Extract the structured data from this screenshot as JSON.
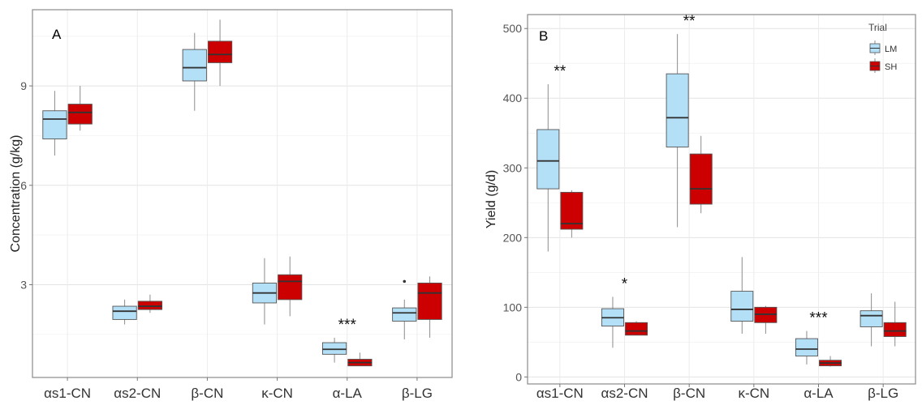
{
  "colors": {
    "LM": "#b3e0f7",
    "SH": "#cc0000"
  },
  "legend": {
    "title": "Trial",
    "entries": [
      "LM",
      "SH"
    ],
    "placement": "top-right of panel B"
  },
  "chart_data": [
    {
      "type": "box",
      "panel_label": "A",
      "ylabel": "Concentration (g/kg)",
      "xlabel": "",
      "ylim": [
        0.2,
        11.3
      ],
      "yticks": [
        3,
        6,
        9
      ],
      "grid": true,
      "categories": [
        "αs1-CN",
        "αs2-CN",
        "β-CN",
        "κ-CN",
        "α-LA",
        "β-LG"
      ],
      "series": [
        {
          "name": "LM",
          "boxes": [
            {
              "min": 6.9,
              "q1": 7.4,
              "median": 8.0,
              "q3": 8.25,
              "max": 8.85,
              "outliers": []
            },
            {
              "min": 1.8,
              "q1": 1.95,
              "median": 2.2,
              "q3": 2.35,
              "max": 2.55,
              "outliers": []
            },
            {
              "min": 8.25,
              "q1": 9.15,
              "median": 9.55,
              "q3": 10.1,
              "max": 10.6,
              "outliers": []
            },
            {
              "min": 1.8,
              "q1": 2.45,
              "median": 2.75,
              "q3": 3.05,
              "max": 3.8,
              "outliers": []
            },
            {
              "min": 0.65,
              "q1": 0.9,
              "median": 1.05,
              "q3": 1.25,
              "max": 1.4,
              "outliers": []
            },
            {
              "min": 1.35,
              "q1": 1.9,
              "median": 2.15,
              "q3": 2.3,
              "max": 2.55,
              "outliers": [
                3.1
              ]
            }
          ]
        },
        {
          "name": "SH",
          "boxes": [
            {
              "min": 7.65,
              "q1": 7.85,
              "median": 8.2,
              "q3": 8.45,
              "max": 9.0,
              "outliers": []
            },
            {
              "min": 2.15,
              "q1": 2.25,
              "median": 2.35,
              "q3": 2.5,
              "max": 2.7,
              "outliers": []
            },
            {
              "min": 9.0,
              "q1": 9.7,
              "median": 9.95,
              "q3": 10.35,
              "max": 11.0,
              "outliers": []
            },
            {
              "min": 2.05,
              "q1": 2.55,
              "median": 3.1,
              "q3": 3.3,
              "max": 3.85,
              "outliers": []
            },
            {
              "min": 0.55,
              "q1": 0.55,
              "median": 0.65,
              "q3": 0.75,
              "max": 0.95,
              "outliers": []
            },
            {
              "min": 1.4,
              "q1": 1.95,
              "median": 2.75,
              "q3": 3.05,
              "max": 3.25,
              "outliers": []
            }
          ]
        }
      ],
      "annotations": [
        {
          "category": "α-LA",
          "text": "***"
        }
      ]
    },
    {
      "type": "box",
      "panel_label": "B",
      "ylabel": "Yield (g/d)",
      "xlabel": "",
      "ylim": [
        -10,
        520
      ],
      "yticks": [
        0,
        100,
        200,
        300,
        400,
        500
      ],
      "grid": true,
      "categories": [
        "αs1-CN",
        "αs2-CN",
        "β-CN",
        "κ-CN",
        "α-LA",
        "β-LG"
      ],
      "series": [
        {
          "name": "LM",
          "boxes": [
            {
              "min": 180,
              "q1": 270,
              "median": 310,
              "q3": 355,
              "max": 420,
              "outliers": []
            },
            {
              "min": 42,
              "q1": 73,
              "median": 85,
              "q3": 98,
              "max": 115,
              "outliers": []
            },
            {
              "min": 215,
              "q1": 330,
              "median": 372,
              "q3": 435,
              "max": 492,
              "outliers": []
            },
            {
              "min": 62,
              "q1": 80,
              "median": 97,
              "q3": 123,
              "max": 172,
              "outliers": []
            },
            {
              "min": 18,
              "q1": 30,
              "median": 40,
              "q3": 55,
              "max": 66,
              "outliers": []
            },
            {
              "min": 44,
              "q1": 72,
              "median": 88,
              "q3": 95,
              "max": 120,
              "outliers": []
            }
          ]
        },
        {
          "name": "SH",
          "boxes": [
            {
              "min": 200,
              "q1": 212,
              "median": 220,
              "q3": 265,
              "max": 268,
              "outliers": []
            },
            {
              "min": 60,
              "q1": 60,
              "median": 66,
              "q3": 78,
              "max": 80,
              "outliers": []
            },
            {
              "min": 235,
              "q1": 248,
              "median": 270,
              "q3": 320,
              "max": 346,
              "outliers": []
            },
            {
              "min": 62,
              "q1": 78,
              "median": 90,
              "q3": 100,
              "max": 102,
              "outliers": []
            },
            {
              "min": 15,
              "q1": 16,
              "median": 20,
              "q3": 24,
              "max": 30,
              "outliers": []
            },
            {
              "min": 44,
              "q1": 58,
              "median": 66,
              "q3": 78,
              "max": 108,
              "outliers": []
            }
          ]
        }
      ],
      "annotations": [
        {
          "category": "αs1-CN",
          "text": "**"
        },
        {
          "category": "αs2-CN",
          "text": "*"
        },
        {
          "category": "β-CN",
          "text": "**"
        },
        {
          "category": "α-LA",
          "text": "***"
        }
      ]
    }
  ]
}
